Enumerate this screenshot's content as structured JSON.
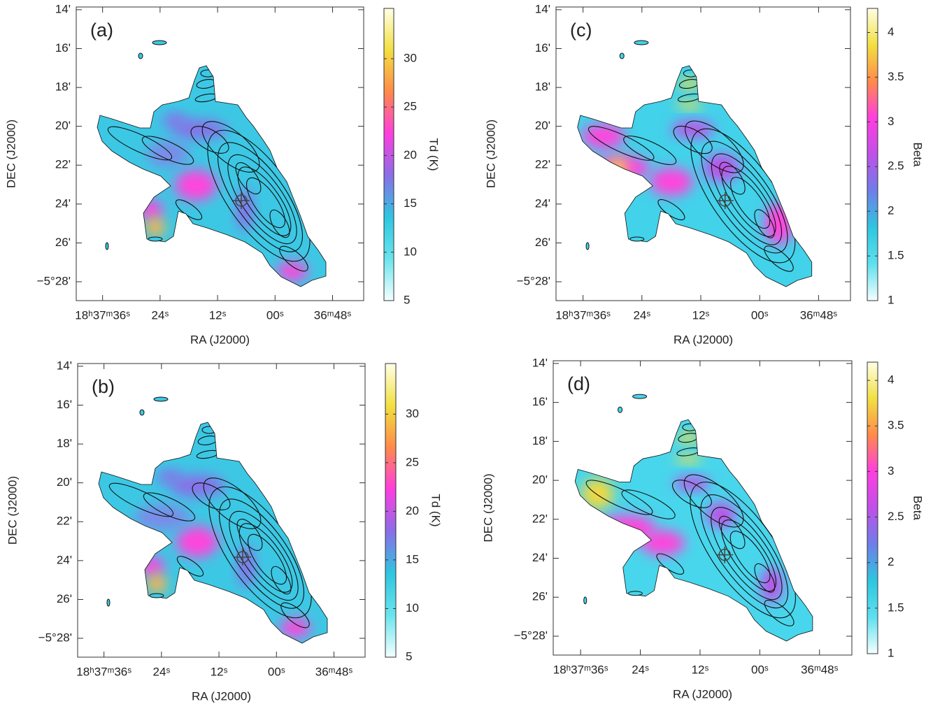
{
  "chart_data": [
    {
      "type": "image",
      "title": "(a)",
      "xlabel": "RA (J2000)",
      "ylabel": "DEC (J2000)",
      "xlim": [
        101.5,
        41.5
      ],
      "ylim": [
        28.97,
        13.86
      ],
      "xticks": [
        {
          "value": 96,
          "label": "18ʰ37ᵐ36ˢ"
        },
        {
          "value": 84,
          "label": "24ˢ"
        },
        {
          "value": 72,
          "label": "12ˢ"
        },
        {
          "value": 60,
          "label": "00ˢ"
        },
        {
          "value": 48,
          "label": "36ᵐ48ˢ"
        }
      ],
      "yticks": [
        {
          "value": 14,
          "label": "14'"
        },
        {
          "value": 16,
          "label": "16'"
        },
        {
          "value": 18,
          "label": "18'"
        },
        {
          "value": 20,
          "label": "20'"
        },
        {
          "value": 22,
          "label": "22'"
        },
        {
          "value": 24,
          "label": "24'"
        },
        {
          "value": 26,
          "label": "26'"
        },
        {
          "value": 28,
          "label": "−5°28'"
        }
      ],
      "colorbar": {
        "label": "Td (K)",
        "lim": [
          5,
          35.2
        ],
        "ticks": [
          5,
          10,
          15,
          20,
          25,
          30
        ],
        "colormap": [
          "#f4ffff",
          "#6ae4ee",
          "#2ec6e0",
          "#8a6ee8",
          "#ff3ee0",
          "#ff8a4a",
          "#f2e040",
          "#ffffe6"
        ]
      }
    },
    {
      "type": "image",
      "title": "(b)",
      "xlabel": "RA (J2000)",
      "ylabel": "DEC (J2000)",
      "xlim": [
        101.5,
        41.5
      ],
      "ylim": [
        28.97,
        13.86
      ],
      "xticks": [
        {
          "value": 96,
          "label": "18ʰ37ᵐ36ˢ"
        },
        {
          "value": 84,
          "label": "24ˢ"
        },
        {
          "value": 72,
          "label": "12ˢ"
        },
        {
          "value": 60,
          "label": "00ˢ"
        },
        {
          "value": 48,
          "label": "36ᵐ48ˢ"
        }
      ],
      "yticks": [
        {
          "value": 14,
          "label": "14'"
        },
        {
          "value": 16,
          "label": "16'"
        },
        {
          "value": 18,
          "label": "18'"
        },
        {
          "value": 20,
          "label": "20'"
        },
        {
          "value": 22,
          "label": "22'"
        },
        {
          "value": 24,
          "label": "24'"
        },
        {
          "value": 26,
          "label": "26'"
        },
        {
          "value": 28,
          "label": "−5°28'"
        }
      ],
      "colorbar": {
        "label": "Td (K)",
        "lim": [
          5,
          35.2
        ],
        "ticks": [
          5,
          10,
          15,
          20,
          25,
          30
        ],
        "colormap": [
          "#f4ffff",
          "#6ae4ee",
          "#2ec6e0",
          "#8a6ee8",
          "#ff3ee0",
          "#ff8a4a",
          "#f2e040",
          "#ffffe6"
        ]
      }
    },
    {
      "type": "image",
      "title": "(c)",
      "xlabel": "RA (J2000)",
      "ylabel": "DEC (J2000)",
      "xlim": [
        101.5,
        41.5
      ],
      "ylim": [
        28.97,
        13.86
      ],
      "xticks": [
        {
          "value": 96,
          "label": "18ʰ37ᵐ36ˢ"
        },
        {
          "value": 84,
          "label": "24ˢ"
        },
        {
          "value": 72,
          "label": "12ˢ"
        },
        {
          "value": 60,
          "label": "00ˢ"
        },
        {
          "value": 48,
          "label": "36ᵐ48ˢ"
        }
      ],
      "yticks": [
        {
          "value": 14,
          "label": "14'"
        },
        {
          "value": 16,
          "label": "16'"
        },
        {
          "value": 18,
          "label": "18'"
        },
        {
          "value": 20,
          "label": "20'"
        },
        {
          "value": 22,
          "label": "22'"
        },
        {
          "value": 24,
          "label": "24'"
        },
        {
          "value": 26,
          "label": "26'"
        },
        {
          "value": 28,
          "label": "−5°28'"
        }
      ],
      "colorbar": {
        "label": "Beta",
        "lim": [
          1,
          4.27
        ],
        "ticks": [
          1,
          1.5,
          2,
          2.5,
          3,
          3.5,
          4
        ],
        "colormap": [
          "#f4ffff",
          "#5ee0ee",
          "#2ec6e0",
          "#6e7ee8",
          "#c050e8",
          "#ff3ee0",
          "#ff8a4a",
          "#f2e040",
          "#ffffe6"
        ]
      }
    },
    {
      "type": "image",
      "title": "(d)",
      "xlabel": "RA (J2000)",
      "ylabel": "DEC (J2000)",
      "xlim": [
        101.5,
        41.5
      ],
      "ylim": [
        28.97,
        13.86
      ],
      "xticks": [
        {
          "value": 96,
          "label": "18ʰ37ᵐ36ˢ"
        },
        {
          "value": 84,
          "label": "24ˢ"
        },
        {
          "value": 72,
          "label": "12ˢ"
        },
        {
          "value": 60,
          "label": "00ˢ"
        },
        {
          "value": 48,
          "label": "36ᵐ48ˢ"
        }
      ],
      "yticks": [
        {
          "value": 14,
          "label": "14'"
        },
        {
          "value": 16,
          "label": "16'"
        },
        {
          "value": 18,
          "label": "18'"
        },
        {
          "value": 20,
          "label": "20'"
        },
        {
          "value": 22,
          "label": "22'"
        },
        {
          "value": 24,
          "label": "24'"
        },
        {
          "value": 26,
          "label": "26'"
        },
        {
          "value": 28,
          "label": "−5°28'"
        }
      ],
      "colorbar": {
        "label": "Beta",
        "lim": [
          1,
          4.2
        ],
        "ticks": [
          1,
          1.5,
          2,
          2.5,
          3,
          3.5,
          4
        ],
        "colormap": [
          "#f4ffff",
          "#5ee0ee",
          "#2ec6e0",
          "#6e7ee8",
          "#c050e8",
          "#ff3ee0",
          "#ff8a4a",
          "#f2e040",
          "#ffffe6"
        ]
      }
    }
  ]
}
